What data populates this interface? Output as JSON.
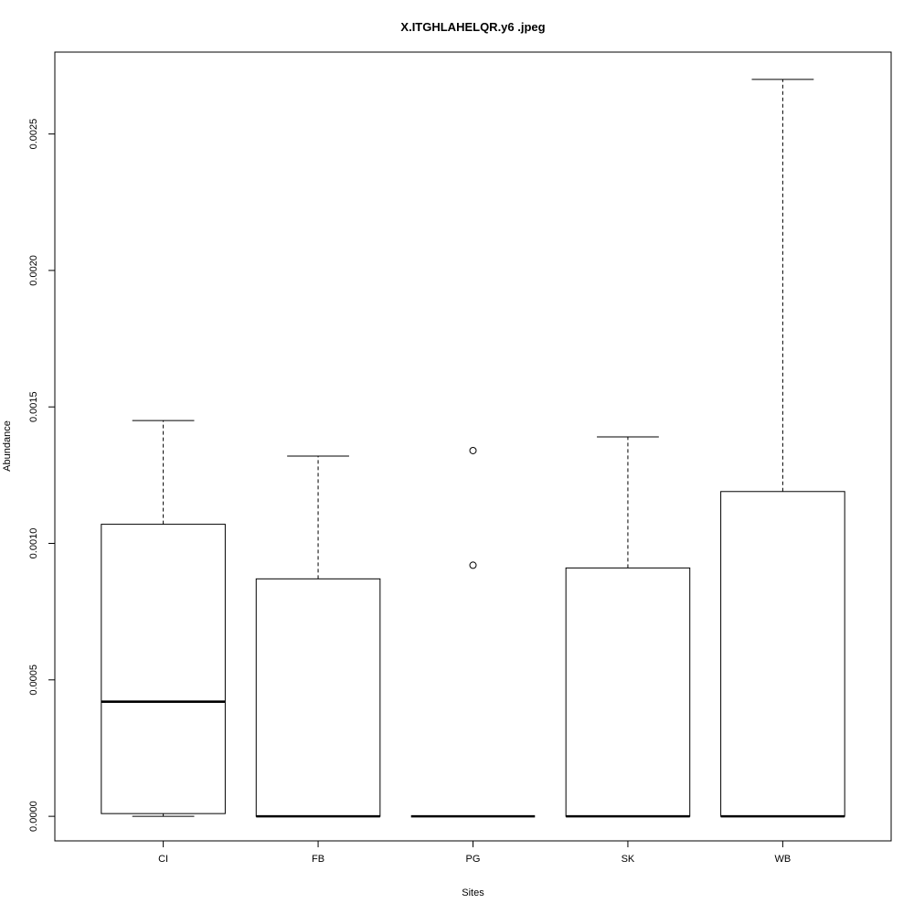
{
  "title": "X.ITGHLAHELQR.y6 .jpeg",
  "chart_data": {
    "type": "boxplot",
    "title": "X.ITGHLAHELQR.y6 .jpeg",
    "xlabel": "Sites",
    "ylabel": "Abundance",
    "categories": [
      "CI",
      "FB",
      "PG",
      "SK",
      "WB"
    ],
    "ylim": [
      -9e-05,
      0.0028
    ],
    "xlim": [
      0.3,
      5.7
    ],
    "grid": false,
    "legend": "none",
    "y_axis": {
      "tick_values": [
        0.0,
        0.0005,
        0.001,
        0.0015,
        0.002,
        0.0025
      ],
      "tick_labels": [
        "0.0000",
        "0.0005",
        "0.0010",
        "0.0015",
        "0.0020",
        "0.0025"
      ]
    },
    "series": [
      {
        "name": "CI",
        "lower_whisker": 0.0,
        "q1": 1e-05,
        "median": 0.00042,
        "q3": 0.00107,
        "upper_whisker": 0.00145,
        "outliers": []
      },
      {
        "name": "FB",
        "lower_whisker": 0.0,
        "q1": 0.0,
        "median": 0.0,
        "q3": 0.00087,
        "upper_whisker": 0.00132,
        "outliers": []
      },
      {
        "name": "PG",
        "lower_whisker": 0.0,
        "q1": 0.0,
        "median": 0.0,
        "q3": 0.0,
        "upper_whisker": 0.0,
        "outliers": [
          0.00134,
          0.00092
        ]
      },
      {
        "name": "SK",
        "lower_whisker": 0.0,
        "q1": 0.0,
        "median": 0.0,
        "q3": 0.00091,
        "upper_whisker": 0.00139,
        "outliers": []
      },
      {
        "name": "WB",
        "lower_whisker": 0.0,
        "q1": 0.0,
        "median": 0.0,
        "q3": 0.00119,
        "upper_whisker": 0.0027,
        "outliers": []
      }
    ],
    "colors": {
      "stroke": "#000000",
      "box_fill": "#ffffff",
      "background": "#ffffff"
    }
  }
}
